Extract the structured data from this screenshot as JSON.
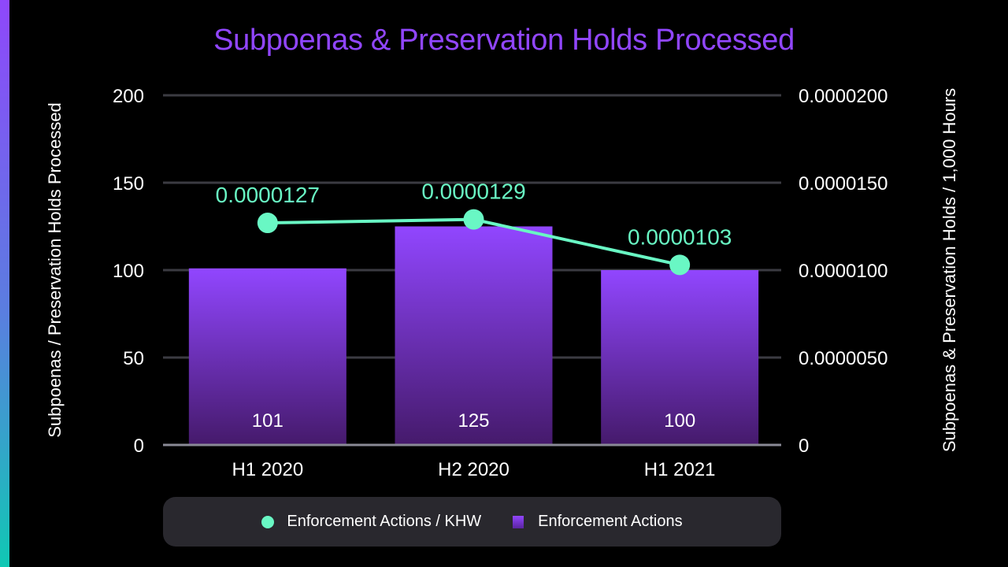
{
  "title": "Subpoenas & Preservation Holds Processed",
  "colors": {
    "title": "#9146ff",
    "bar_top": "#9146ff",
    "bar_bottom": "#451a6b",
    "line": "#69f7c4",
    "grid": "#3b3b42",
    "baseline": "#8a8a96",
    "legend_bg": "#29282e",
    "accent_top": "#8f47fb",
    "accent_bottom": "#10c8b4"
  },
  "axes": {
    "y_left_label": "Subpoenas / Preservation Holds Processed",
    "y_right_label": "Subpoenas & Preservation Holds / 1,000 Hours",
    "y_left_ticks": [
      "0",
      "50",
      "100",
      "150",
      "200"
    ],
    "y_right_ticks": [
      "0",
      "0.0000050",
      "0.0000100",
      "0.0000150",
      "0.0000200"
    ],
    "x_ticks": [
      "H1 2020",
      "H2 2020",
      "H1 2021"
    ]
  },
  "legend": {
    "items": [
      {
        "label": "Enforcement Actions / KHW",
        "marker": "circle",
        "color": "#69f7c4"
      },
      {
        "label": "Enforcement Actions",
        "marker": "square",
        "color": "#9146ff"
      }
    ]
  },
  "chart_data": {
    "type": "bar",
    "title": "Subpoenas & Preservation Holds Processed",
    "categories": [
      "H1 2020",
      "H2 2020",
      "H1 2021"
    ],
    "series": [
      {
        "name": "Enforcement Actions",
        "type": "bar",
        "axis": "left",
        "values": [
          101,
          125,
          100
        ],
        "labels": [
          "101",
          "125",
          "100"
        ]
      },
      {
        "name": "Enforcement Actions / KHW",
        "type": "line",
        "axis": "right",
        "values": [
          1.27e-05,
          1.29e-05,
          1.03e-05
        ],
        "labels": [
          "0.0000127",
          "0.0000129",
          "0.0000103"
        ]
      }
    ],
    "xlabel": "",
    "ylabel": "Subpoenas / Preservation Holds Processed",
    "ylabel_right": "Subpoenas & Preservation Holds / 1,000 Hours",
    "ylim": [
      0,
      200
    ],
    "ylim_right": [
      0,
      2e-05
    ],
    "grid": true,
    "legend_position": "bottom"
  }
}
